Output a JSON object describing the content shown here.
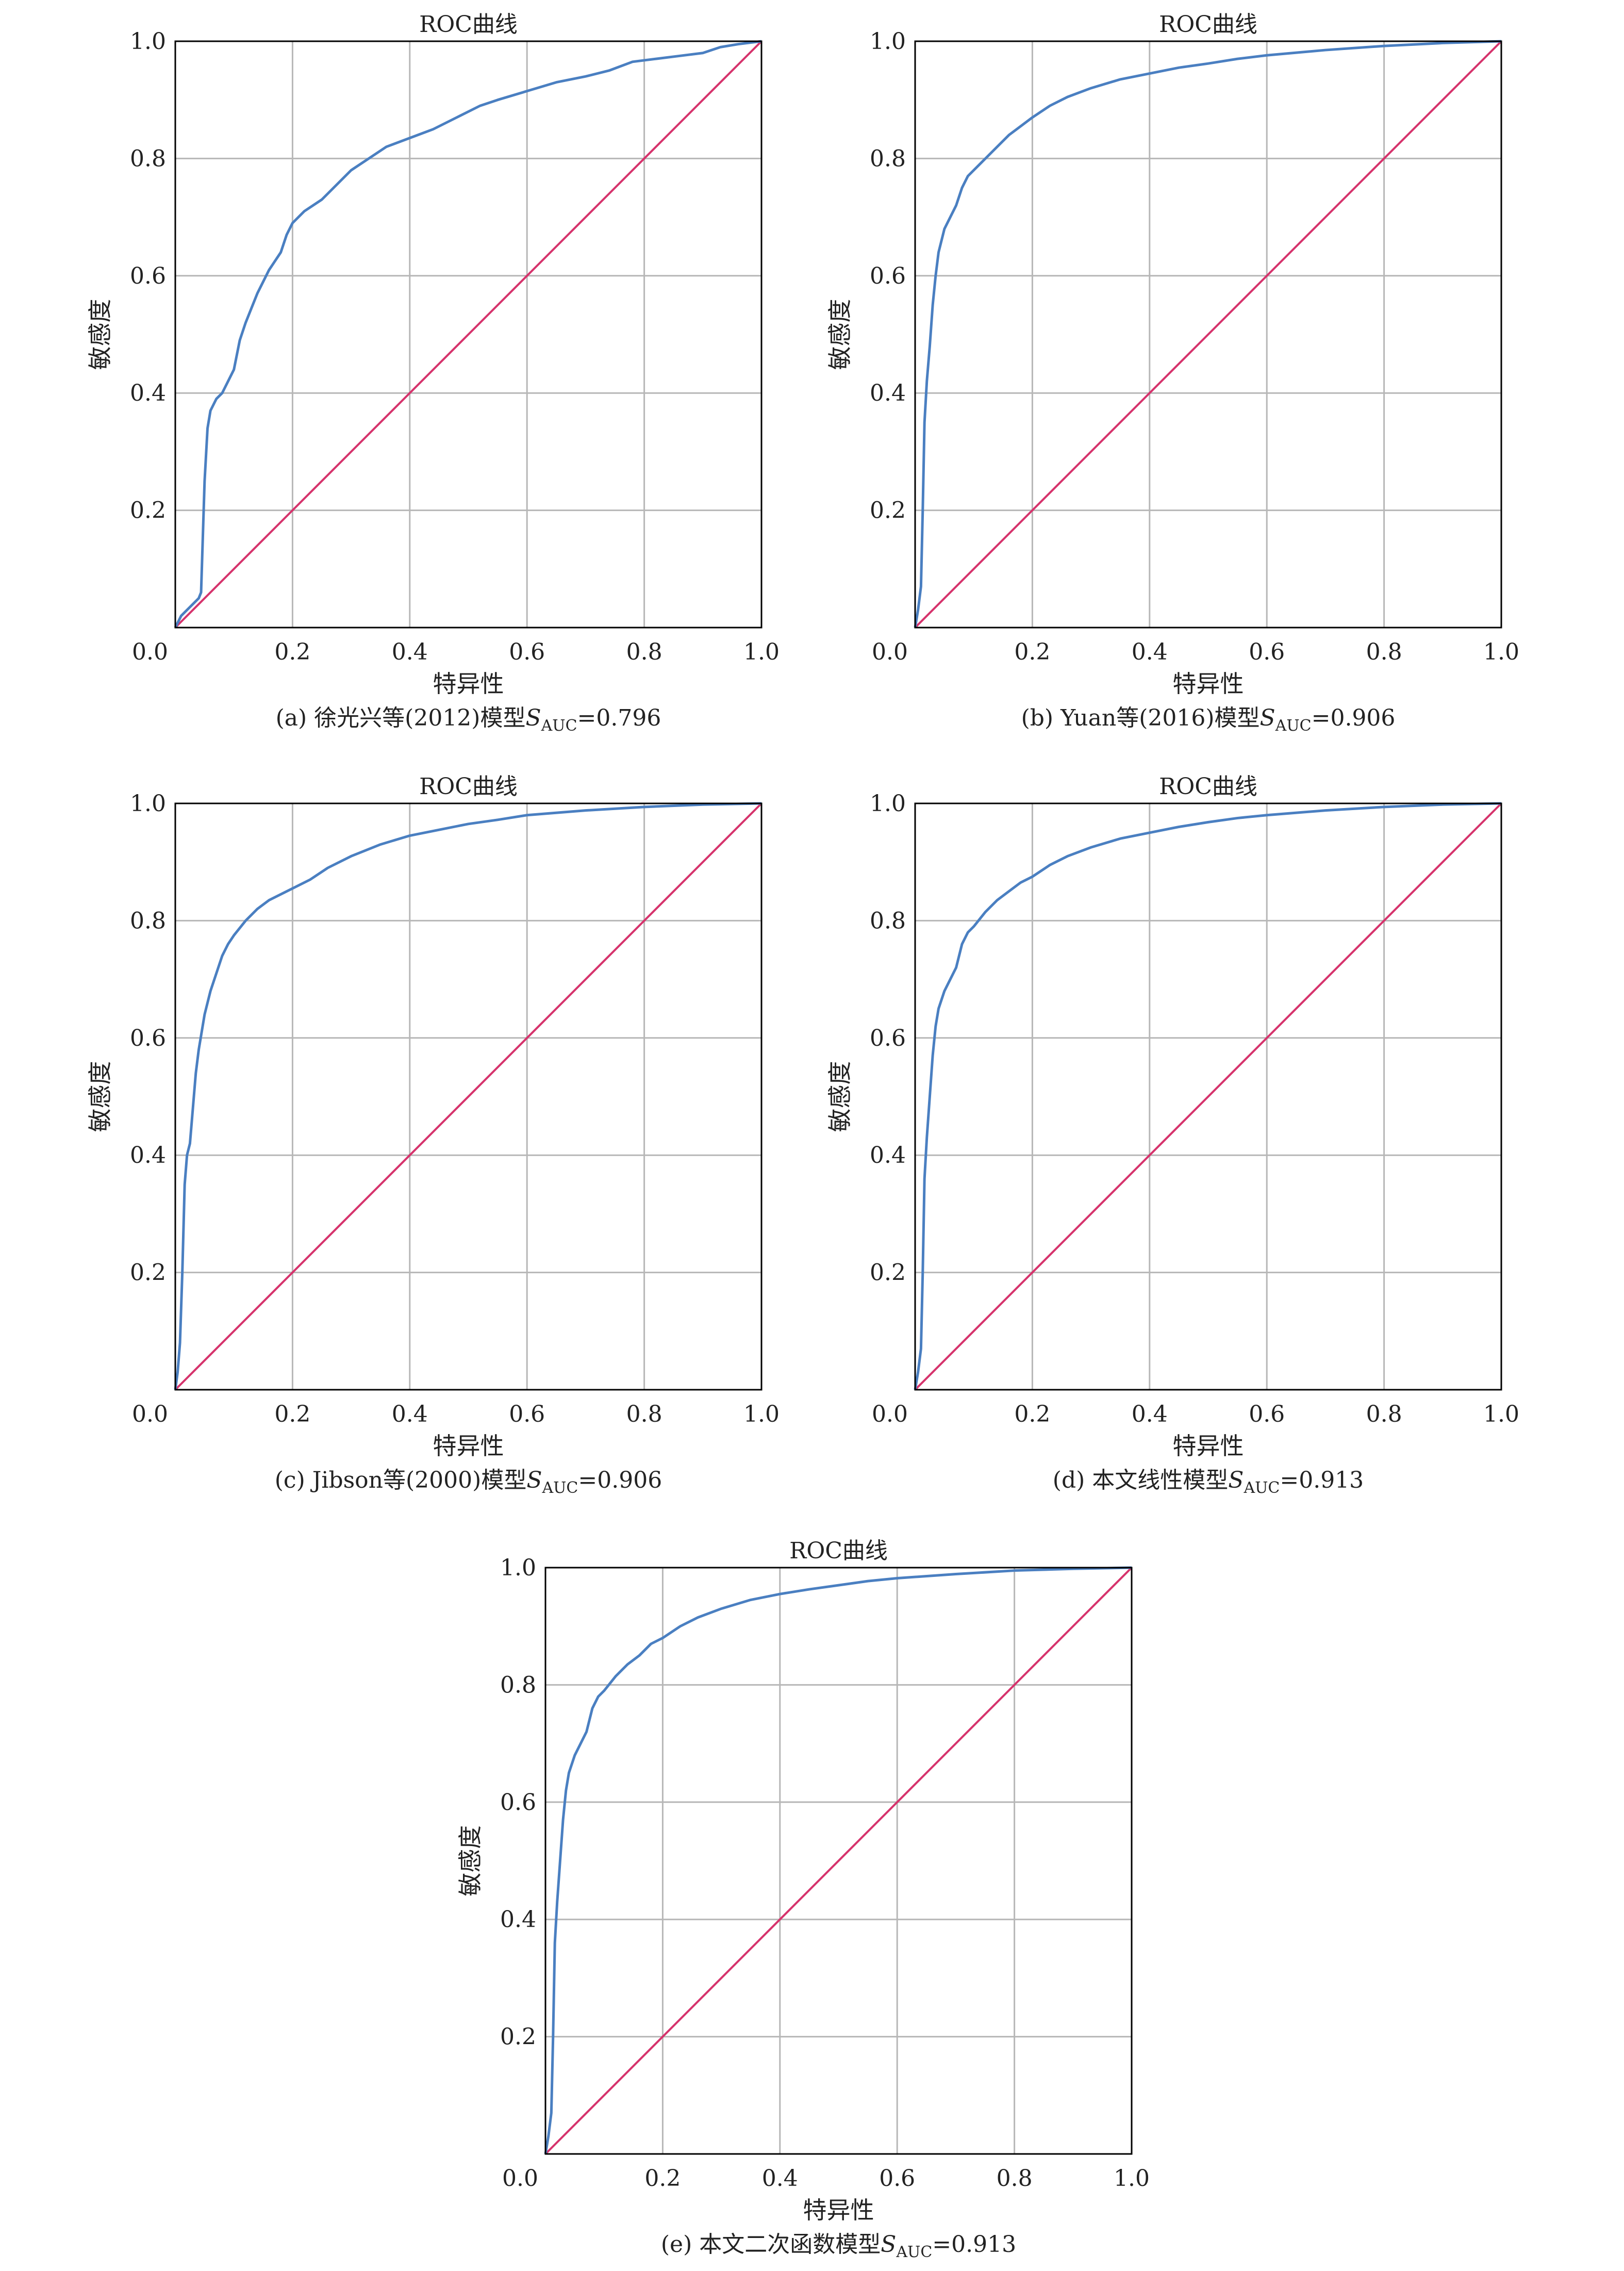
{
  "figure": {
    "panel_title": "ROC曲线",
    "xlabel": "特异性",
    "ylabel": "敏感度",
    "x_ticks": [
      "0.0",
      "0.2",
      "0.4",
      "0.6",
      "0.8",
      "1.0"
    ],
    "y_ticks": [
      "0.2",
      "0.4",
      "0.6",
      "0.8",
      "1.0"
    ],
    "colors": {
      "roc_curve": "#4a7fc1",
      "diagonal": "#d6336c",
      "grid": "#b7b7b7",
      "axes": "#000000"
    }
  },
  "chart_data": [
    {
      "type": "line",
      "caption": {
        "prefix": "(a) 徐光兴等(2012)模型",
        "symbol": "S",
        "subscript": "AUC",
        "suffix": "=0.796"
      },
      "title": "ROC曲线",
      "xlabel": "特异性",
      "ylabel": "敏感度",
      "xlim": [
        0,
        1
      ],
      "ylim": [
        0,
        1
      ],
      "grid": true,
      "series": [
        {
          "role": "roc",
          "x": [
            0,
            0.01,
            0.03,
            0.04,
            0.044,
            0.05,
            0.055,
            0.06,
            0.07,
            0.08,
            0.09,
            0.1,
            0.11,
            0.12,
            0.14,
            0.16,
            0.18,
            0.19,
            0.2,
            0.22,
            0.25,
            0.28,
            0.3,
            0.33,
            0.36,
            0.4,
            0.44,
            0.48,
            0.52,
            0.55,
            0.6,
            0.65,
            0.7,
            0.74,
            0.78,
            0.82,
            0.86,
            0.9,
            0.93,
            0.96,
            1.0
          ],
          "y": [
            0,
            0.02,
            0.04,
            0.05,
            0.06,
            0.25,
            0.34,
            0.37,
            0.39,
            0.4,
            0.42,
            0.44,
            0.49,
            0.52,
            0.57,
            0.61,
            0.64,
            0.67,
            0.69,
            0.71,
            0.73,
            0.76,
            0.78,
            0.8,
            0.82,
            0.835,
            0.85,
            0.87,
            0.89,
            0.9,
            0.915,
            0.93,
            0.94,
            0.95,
            0.965,
            0.97,
            0.975,
            0.98,
            0.99,
            0.995,
            1.0
          ]
        },
        {
          "role": "reference",
          "x": [
            0,
            1
          ],
          "y": [
            0,
            1
          ]
        }
      ]
    },
    {
      "type": "line",
      "caption": {
        "prefix": "(b) Yuan等(2016)模型",
        "symbol": "S",
        "subscript": "AUC",
        "suffix": "=0.906"
      },
      "title": "ROC曲线",
      "xlabel": "特异性",
      "ylabel": "敏感度",
      "xlim": [
        0,
        1
      ],
      "ylim": [
        0,
        1
      ],
      "grid": true,
      "series": [
        {
          "role": "roc",
          "x": [
            0,
            0.005,
            0.01,
            0.013,
            0.016,
            0.02,
            0.025,
            0.03,
            0.035,
            0.04,
            0.05,
            0.06,
            0.07,
            0.08,
            0.09,
            0.1,
            0.12,
            0.14,
            0.16,
            0.18,
            0.2,
            0.23,
            0.26,
            0.3,
            0.35,
            0.4,
            0.45,
            0.5,
            0.55,
            0.6,
            0.7,
            0.8,
            0.9,
            1.0
          ],
          "y": [
            0,
            0.03,
            0.07,
            0.2,
            0.35,
            0.42,
            0.48,
            0.55,
            0.6,
            0.64,
            0.68,
            0.7,
            0.72,
            0.75,
            0.77,
            0.78,
            0.8,
            0.82,
            0.84,
            0.855,
            0.87,
            0.89,
            0.905,
            0.92,
            0.935,
            0.945,
            0.955,
            0.962,
            0.97,
            0.976,
            0.985,
            0.992,
            0.997,
            1.0
          ]
        },
        {
          "role": "reference",
          "x": [
            0,
            1
          ],
          "y": [
            0,
            1
          ]
        }
      ]
    },
    {
      "type": "line",
      "caption": {
        "prefix": "(c) Jibson等(2000)模型",
        "symbol": "S",
        "subscript": "AUC",
        "suffix": "=0.906"
      },
      "title": "ROC曲线",
      "xlabel": "特异性",
      "ylabel": "敏感度",
      "xlim": [
        0,
        1
      ],
      "ylim": [
        0,
        1
      ],
      "grid": true,
      "series": [
        {
          "role": "roc",
          "x": [
            0,
            0.004,
            0.008,
            0.012,
            0.016,
            0.02,
            0.025,
            0.03,
            0.035,
            0.04,
            0.05,
            0.06,
            0.07,
            0.08,
            0.09,
            0.1,
            0.12,
            0.14,
            0.16,
            0.18,
            0.2,
            0.23,
            0.26,
            0.3,
            0.35,
            0.4,
            0.45,
            0.5,
            0.55,
            0.6,
            0.7,
            0.8,
            0.9,
            1.0
          ],
          "y": [
            0,
            0.03,
            0.08,
            0.2,
            0.35,
            0.4,
            0.42,
            0.48,
            0.54,
            0.58,
            0.64,
            0.68,
            0.71,
            0.74,
            0.76,
            0.775,
            0.8,
            0.82,
            0.835,
            0.845,
            0.855,
            0.87,
            0.89,
            0.91,
            0.93,
            0.945,
            0.955,
            0.965,
            0.972,
            0.98,
            0.988,
            0.994,
            0.998,
            1.0
          ]
        },
        {
          "role": "reference",
          "x": [
            0,
            1
          ],
          "y": [
            0,
            1
          ]
        }
      ]
    },
    {
      "type": "line",
      "caption": {
        "prefix": "(d) 本文线性模型",
        "symbol": "S",
        "subscript": "AUC",
        "suffix": "=0.913"
      },
      "title": "ROC曲线",
      "xlabel": "特异性",
      "ylabel": "敏感度",
      "xlim": [
        0,
        1
      ],
      "ylim": [
        0,
        1
      ],
      "grid": true,
      "series": [
        {
          "role": "roc",
          "x": [
            0,
            0.005,
            0.01,
            0.013,
            0.016,
            0.02,
            0.025,
            0.03,
            0.035,
            0.04,
            0.05,
            0.06,
            0.07,
            0.08,
            0.09,
            0.1,
            0.12,
            0.14,
            0.16,
            0.18,
            0.2,
            0.23,
            0.26,
            0.3,
            0.35,
            0.4,
            0.45,
            0.5,
            0.55,
            0.6,
            0.7,
            0.8,
            0.9,
            1.0
          ],
          "y": [
            0,
            0.03,
            0.07,
            0.2,
            0.36,
            0.43,
            0.5,
            0.57,
            0.62,
            0.65,
            0.68,
            0.7,
            0.72,
            0.76,
            0.78,
            0.79,
            0.815,
            0.835,
            0.85,
            0.865,
            0.875,
            0.895,
            0.91,
            0.925,
            0.94,
            0.95,
            0.96,
            0.968,
            0.975,
            0.98,
            0.988,
            0.994,
            0.998,
            1.0
          ]
        },
        {
          "role": "reference",
          "x": [
            0,
            1
          ],
          "y": [
            0,
            1
          ]
        }
      ]
    },
    {
      "type": "line",
      "caption": {
        "prefix": "(e) 本文二次函数模型",
        "symbol": "S",
        "subscript": "AUC",
        "suffix": "=0.913"
      },
      "title": "ROC曲线",
      "xlabel": "特异性",
      "ylabel": "敏感度",
      "xlim": [
        0,
        1
      ],
      "ylim": [
        0,
        1
      ],
      "grid": true,
      "series": [
        {
          "role": "roc",
          "x": [
            0,
            0.005,
            0.01,
            0.013,
            0.016,
            0.02,
            0.025,
            0.03,
            0.035,
            0.04,
            0.05,
            0.06,
            0.07,
            0.08,
            0.09,
            0.1,
            0.12,
            0.14,
            0.16,
            0.18,
            0.2,
            0.23,
            0.26,
            0.3,
            0.35,
            0.4,
            0.45,
            0.5,
            0.55,
            0.6,
            0.7,
            0.8,
            0.9,
            1.0
          ],
          "y": [
            0,
            0.03,
            0.07,
            0.2,
            0.36,
            0.43,
            0.5,
            0.57,
            0.62,
            0.65,
            0.68,
            0.7,
            0.72,
            0.76,
            0.78,
            0.79,
            0.815,
            0.835,
            0.85,
            0.87,
            0.88,
            0.9,
            0.915,
            0.93,
            0.945,
            0.955,
            0.963,
            0.97,
            0.977,
            0.982,
            0.989,
            0.995,
            0.998,
            1.0
          ]
        },
        {
          "role": "reference",
          "x": [
            0,
            1
          ],
          "y": [
            0,
            1
          ]
        }
      ]
    }
  ]
}
